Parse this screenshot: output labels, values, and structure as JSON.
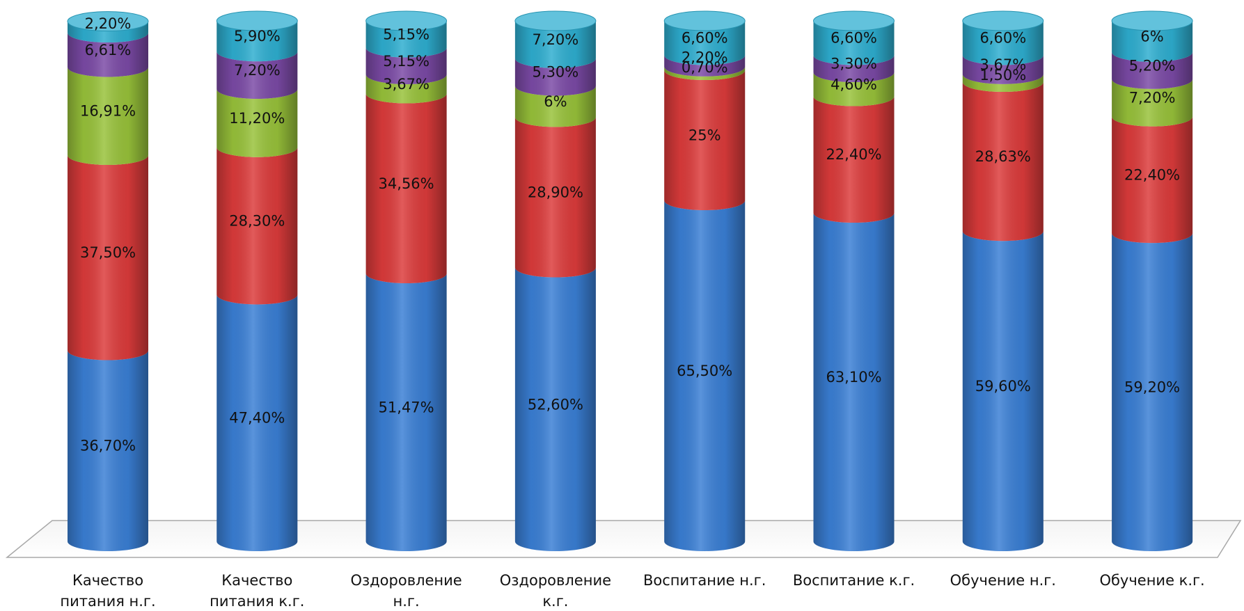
{
  "chart_data": {
    "type": "bar",
    "stacked": true,
    "style": "3d-cylinder",
    "title": "",
    "xlabel": "",
    "ylabel": "",
    "ylim": [
      0,
      100
    ],
    "grid": false,
    "legend": "none",
    "categories": [
      [
        "Качество",
        "питания н.г."
      ],
      [
        "Качество",
        "питания к.г."
      ],
      [
        "Оздоровление",
        "н.г."
      ],
      [
        "Оздоровление",
        "к.г."
      ],
      [
        "Воспитание н.г."
      ],
      [
        "Воспитание к.г."
      ],
      [
        "Обучение н.г."
      ],
      [
        "Обучение к.г."
      ]
    ],
    "series": [
      {
        "color": "#3a7fd5",
        "values": [
          36.7,
          47.4,
          51.47,
          52.6,
          65.5,
          63.1,
          59.6,
          59.2
        ],
        "labels": [
          "36,70%",
          "47,40%",
          "51,47%",
          "52,60%",
          "65,50%",
          "63,10%",
          "59,60%",
          "59,20%"
        ]
      },
      {
        "color": "#dc3b3b",
        "values": [
          37.5,
          28.3,
          34.56,
          28.9,
          25,
          22.4,
          28.63,
          22.4
        ],
        "labels": [
          "37,50%",
          "28,30%",
          "34,56%",
          "28,90%",
          "25%",
          "22,40%",
          "28,63%",
          "22,40%"
        ]
      },
      {
        "color": "#98c23a",
        "values": [
          16.91,
          11.2,
          3.67,
          6,
          0.7,
          4.6,
          1.5,
          7.2
        ],
        "labels": [
          "16,91%",
          "11,20%",
          "3,67%",
          "6%",
          "0,70%",
          "4,60%",
          "1,50%",
          "7,20%"
        ]
      },
      {
        "color": "#7b4aa6",
        "values": [
          6.61,
          7.2,
          5.15,
          5.3,
          2.2,
          3.3,
          3.67,
          5.2
        ],
        "labels": [
          "6,61%",
          "7,20%",
          "5,15%",
          "5,30%",
          "2,20%",
          "3,30%",
          "3,67%",
          "5,20%"
        ]
      },
      {
        "color": "#2eaed0",
        "values": [
          2.2,
          5.9,
          5.15,
          7.2,
          6.6,
          6.6,
          6.6,
          6
        ],
        "labels": [
          "2,20%",
          "5,90%",
          "5,15%",
          "7,20%",
          "6,60%",
          "6,60%",
          "6,60%",
          "6%"
        ]
      }
    ]
  }
}
